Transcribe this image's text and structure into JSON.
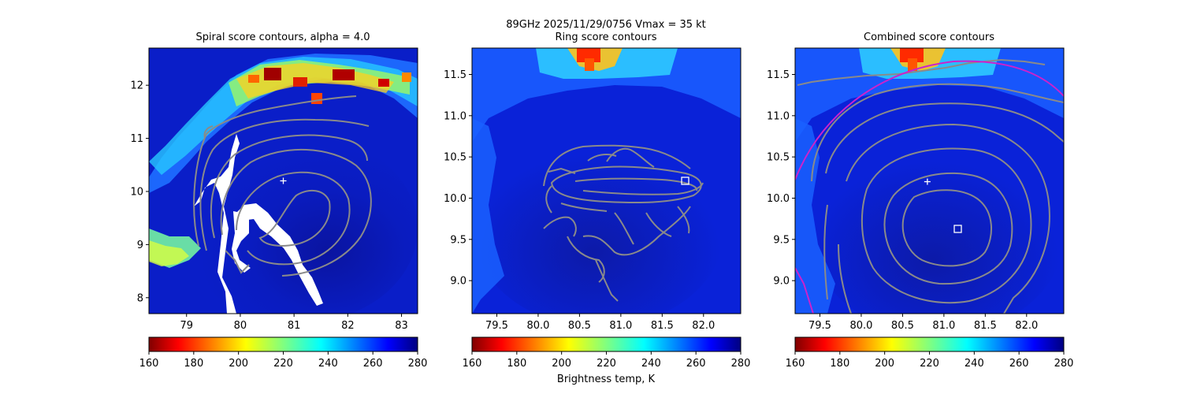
{
  "suptitle": "89GHz  2025/11/29/0756    Vmax = 35 kt",
  "colorbar_label": "Brightness temp, K",
  "colormap": "jet_r",
  "chart_data": [
    {
      "type": "heatmap",
      "title": "Spiral score contours, alpha =  4.0",
      "xlim": [
        78.3,
        83.3
      ],
      "ylim": [
        7.7,
        12.7
      ],
      "xticks": [
        "79",
        "80",
        "81",
        "82",
        "83"
      ],
      "yticks": [
        "8",
        "9",
        "10",
        "11",
        "12"
      ],
      "center_marker": [
        80.8,
        10.2
      ],
      "contours": "gray",
      "colorbar": {
        "min": 160,
        "max": 280,
        "ticks": [
          "160",
          "180",
          "200",
          "220",
          "240",
          "260",
          "280"
        ]
      }
    },
    {
      "type": "heatmap",
      "title": "Ring score contours",
      "xlim": [
        79.2,
        82.45
      ],
      "ylim": [
        8.6,
        11.82
      ],
      "xticks": [
        "79.5",
        "80.0",
        "80.5",
        "81.0",
        "81.5",
        "82.0"
      ],
      "yticks": [
        "9.0",
        "9.5",
        "10.0",
        "10.5",
        "11.0",
        "11.5"
      ],
      "square_marker": [
        81.75,
        10.2
      ],
      "contours": "gray",
      "colorbar": {
        "min": 160,
        "max": 280,
        "ticks": [
          "160",
          "180",
          "200",
          "220",
          "240",
          "260",
          "280"
        ]
      }
    },
    {
      "type": "heatmap",
      "title": "Combined score contours",
      "xlim": [
        79.2,
        82.45
      ],
      "ylim": [
        8.6,
        11.82
      ],
      "xticks": [
        "79.5",
        "80.0",
        "80.5",
        "81.0",
        "81.5",
        "82.0"
      ],
      "yticks": [
        "9.0",
        "9.5",
        "10.0",
        "10.5",
        "11.0",
        "11.5"
      ],
      "center_marker": [
        80.8,
        10.2
      ],
      "square_marker": [
        81.15,
        9.6
      ],
      "ring_color": "#cc22cc",
      "contours": "gray",
      "colorbar": {
        "min": 160,
        "max": 280,
        "ticks": [
          "160",
          "180",
          "200",
          "220",
          "240",
          "260",
          "280"
        ]
      }
    }
  ]
}
